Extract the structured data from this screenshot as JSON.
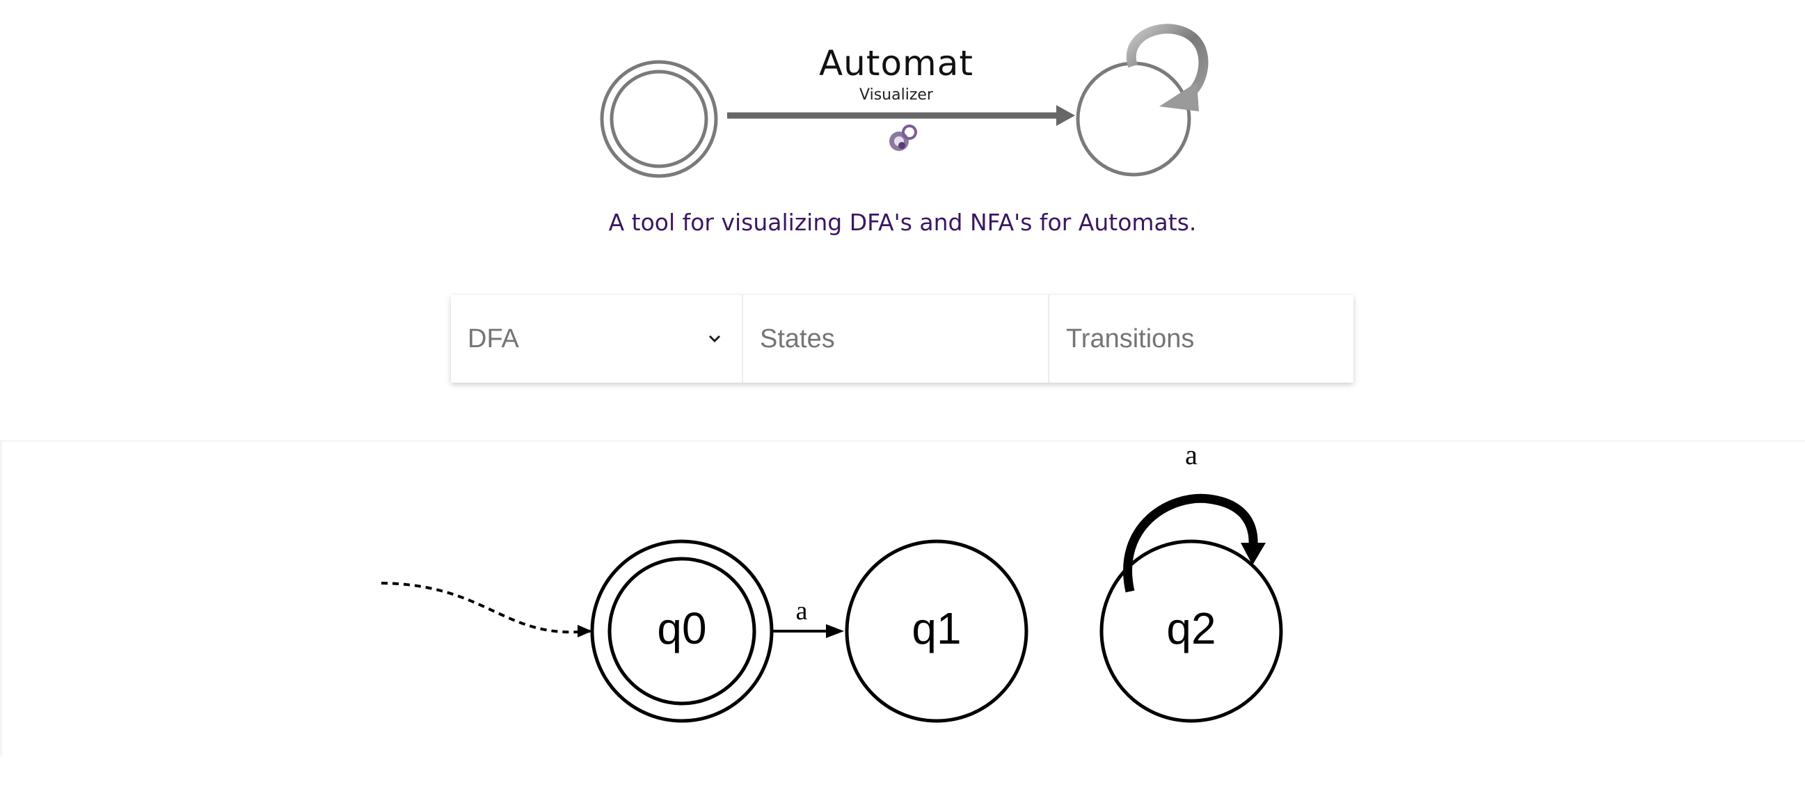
{
  "header": {
    "title": "Automat",
    "subtitle": "Visualizer",
    "tagline": "A tool for visualizing DFA's and NFA's for Automats."
  },
  "inputs": {
    "automaton_type": "DFA",
    "states_placeholder": "States",
    "transitions_placeholder": "Transitions"
  },
  "diagram": {
    "states": [
      {
        "name": "q0",
        "accepting": true,
        "initial": true
      },
      {
        "name": "q1",
        "accepting": false,
        "initial": false
      },
      {
        "name": "q2",
        "accepting": false,
        "initial": false
      }
    ],
    "transitions": [
      {
        "from": "q0",
        "to": "q1",
        "label": "a"
      },
      {
        "from": "q2",
        "to": "q2",
        "label": "a"
      }
    ]
  },
  "colors": {
    "tagline": "#3a1760",
    "logo_gray": "#6e6e6e",
    "graph_stroke": "#000000"
  }
}
